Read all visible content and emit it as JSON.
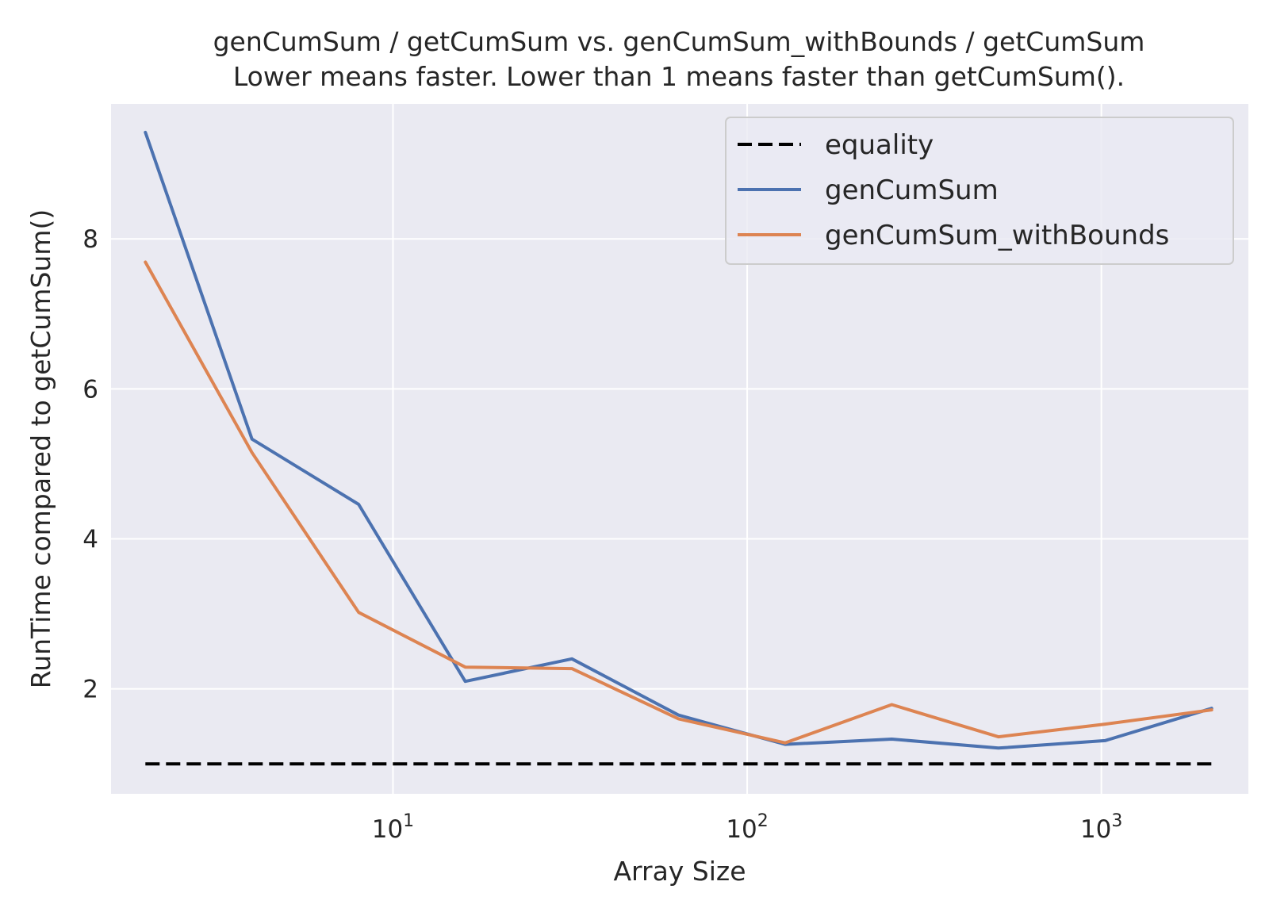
{
  "chart_data": {
    "type": "line",
    "title": "genCumSum / getCumSum vs. genCumSum_withBounds / getCumSum",
    "subtitle": "Lower means faster. Lower than 1 means faster than getCumSum().",
    "xlabel": "Array Size",
    "ylabel": "RunTime compared to getCumSum()",
    "xscale": "log",
    "xlim": [
      1.6,
      2600
    ],
    "ylim": [
      0.6,
      9.8
    ],
    "xticks": [
      {
        "value": 10,
        "base": "10",
        "exp": "1"
      },
      {
        "value": 100,
        "base": "10",
        "exp": "2"
      },
      {
        "value": 1000,
        "base": "10",
        "exp": "3"
      }
    ],
    "yticks": [
      {
        "value": 2,
        "label": "2"
      },
      {
        "value": 4,
        "label": "4"
      },
      {
        "value": 6,
        "label": "6"
      },
      {
        "value": 8,
        "label": "8"
      }
    ],
    "grid": true,
    "legend_position": "top-right",
    "x": [
      2,
      4,
      8,
      16,
      32,
      64,
      128,
      256,
      512,
      1024,
      2048
    ],
    "series": [
      {
        "name": "equality",
        "color": "#000000",
        "dash": true,
        "values": [
          1,
          1,
          1,
          1,
          1,
          1,
          1,
          1,
          1,
          1,
          1
        ]
      },
      {
        "name": "genCumSum",
        "color": "#4c72b0",
        "dash": false,
        "values": [
          9.42,
          5.33,
          4.46,
          2.1,
          2.4,
          1.65,
          1.26,
          1.33,
          1.21,
          1.31,
          1.74
        ]
      },
      {
        "name": "genCumSum_withBounds",
        "color": "#dd8452",
        "dash": false,
        "values": [
          7.69,
          5.15,
          3.02,
          2.29,
          2.27,
          1.6,
          1.28,
          1.79,
          1.36,
          1.53,
          1.72
        ]
      }
    ]
  }
}
